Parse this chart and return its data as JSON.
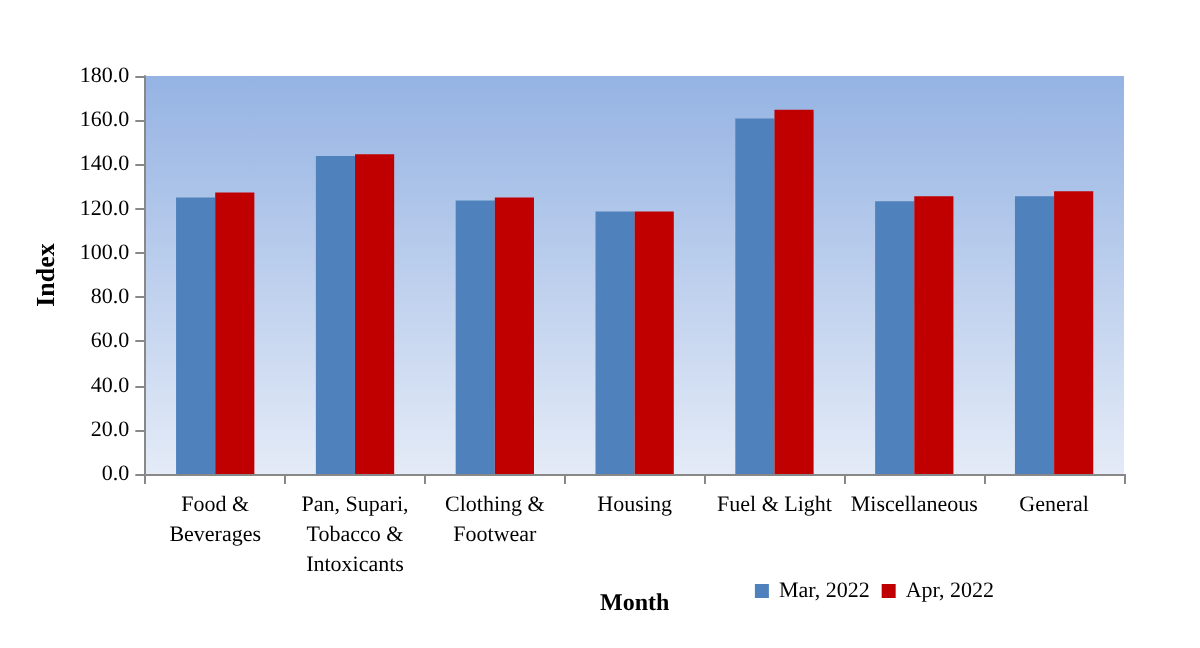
{
  "chart_data": {
    "type": "bar",
    "xlabel": "Month",
    "ylabel": "Index",
    "categories": [
      "Food &\nBeverages",
      "Pan, Supari,\nTobacco &\nIntoxicants",
      "Clothing &\nFootwear",
      "Housing",
      "Fuel & Light",
      "Miscellaneous",
      "General"
    ],
    "series": [
      {
        "name": "Mar, 2022",
        "color": "#4f81bd",
        "values": [
          125.0,
          143.8,
          123.7,
          118.7,
          160.8,
          123.4,
          125.6
        ]
      },
      {
        "name": "Apr, 2022",
        "color": "#c00000",
        "values": [
          127.3,
          144.6,
          125.0,
          118.7,
          164.7,
          125.6,
          127.9
        ]
      }
    ],
    "ylim": [
      0,
      180
    ],
    "yticks": [
      {
        "value": 0,
        "label": "0.0"
      },
      {
        "value": 20,
        "label": "20.0"
      },
      {
        "value": 40,
        "label": "40.0"
      },
      {
        "value": 60,
        "label": "60.0"
      },
      {
        "value": 80,
        "label": "80.0"
      },
      {
        "value": 100,
        "label": "100.0"
      },
      {
        "value": 120,
        "label": "120.0"
      },
      {
        "value": 140,
        "label": "140.0"
      },
      {
        "value": 160,
        "label": "160.0"
      },
      {
        "value": 180,
        "label": "180.0"
      }
    ],
    "grid": false,
    "legend": "bottom right"
  }
}
